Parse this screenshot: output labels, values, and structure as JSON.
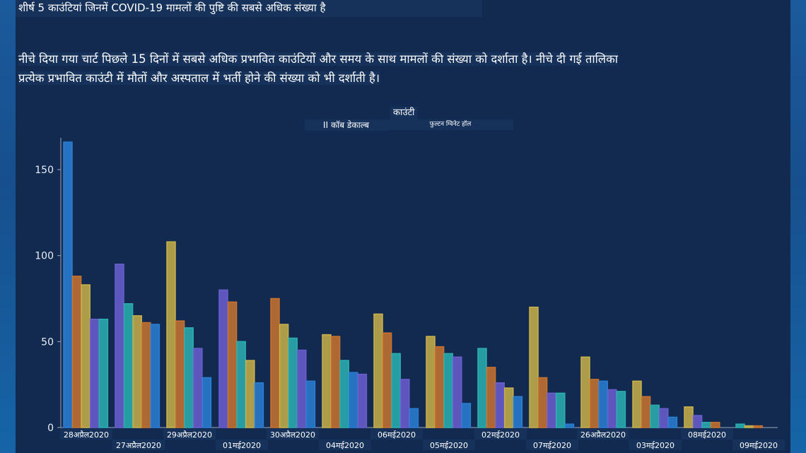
{
  "heading": "शीर्ष 5 काउंटियां जिनमें COVID-19 मामलों की पुष्टि की सबसे अधिक संख्या है",
  "description_line1": "नीचे दिया गया चार्ट पिछले 15 दिनों में सबसे अधिक प्रभावित काउंटियों और समय के साथ मामलों की संख्या को दर्शाता है। नीचे दी गई तालिका",
  "description_line2": "प्रत्येक प्रभावित काउंटी में मौतों और अस्पताल में भर्ती होने की संख्या को भी दर्शाती है।",
  "legend": {
    "title": "काउंटी",
    "left_label": "II कॉब डेकाल्ब",
    "right_label": "फुल्टन ग्विनेट हॉल"
  },
  "colors": {
    "background": "#122a4f",
    "axis": "#9aa7bb",
    "palette": [
      "#2a7fd4",
      "#c9732e",
      "#c9b24a",
      "#6b5fd0",
      "#2bb0b0"
    ]
  },
  "chart_data": {
    "type": "bar",
    "title": "",
    "xlabel": "",
    "ylabel": "",
    "ylim": [
      0,
      170
    ],
    "yticks": [
      0,
      50,
      100,
      150
    ],
    "grid": false,
    "categories": [
      "28अप्रैल2020",
      "27अप्रैल2020",
      "29अप्रैल2020",
      "01मई2020",
      "30अप्रैल2020",
      "04मई2020",
      "06मई2020",
      "05मई2020",
      "02मई2020",
      "07मई2020",
      "26अप्रैल2020",
      "03मई2020",
      "08मई2020",
      "09मई2020"
    ],
    "groups": [
      {
        "values": [
          166,
          88,
          83,
          63,
          63
        ],
        "colors": [
          "#2a7fd4",
          "#c9732e",
          "#c9b24a",
          "#6b5fd0",
          "#2bb0b0"
        ]
      },
      {
        "values": [
          95,
          72,
          65,
          61,
          60
        ],
        "colors": [
          "#6b5fd0",
          "#2bb0b0",
          "#c9b24a",
          "#c9732e",
          "#2a7fd4"
        ]
      },
      {
        "values": [
          108,
          62,
          58,
          46,
          29
        ],
        "colors": [
          "#c9b24a",
          "#c9732e",
          "#2bb0b0",
          "#6b5fd0",
          "#2a7fd4"
        ]
      },
      {
        "values": [
          80,
          73,
          50,
          39,
          26
        ],
        "colors": [
          "#6b5fd0",
          "#c9732e",
          "#2bb0b0",
          "#c9b24a",
          "#2a7fd4"
        ]
      },
      {
        "values": [
          75,
          60,
          52,
          45,
          27
        ],
        "colors": [
          "#c9732e",
          "#c9b24a",
          "#2bb0b0",
          "#6b5fd0",
          "#2a7fd4"
        ]
      },
      {
        "values": [
          54,
          53,
          39,
          32,
          31
        ],
        "colors": [
          "#c9b24a",
          "#c9732e",
          "#2bb0b0",
          "#2a7fd4",
          "#6b5fd0"
        ]
      },
      {
        "values": [
          66,
          55,
          43,
          28,
          11
        ],
        "colors": [
          "#c9b24a",
          "#c9732e",
          "#2bb0b0",
          "#6b5fd0",
          "#2a7fd4"
        ]
      },
      {
        "values": [
          53,
          47,
          43,
          41,
          14
        ],
        "colors": [
          "#c9b24a",
          "#c9732e",
          "#2bb0b0",
          "#6b5fd0",
          "#2a7fd4"
        ]
      },
      {
        "values": [
          46,
          35,
          26,
          23,
          18
        ],
        "colors": [
          "#2bb0b0",
          "#c9732e",
          "#6b5fd0",
          "#c9b24a",
          "#2a7fd4"
        ]
      },
      {
        "values": [
          70,
          29,
          20,
          20,
          2
        ],
        "colors": [
          "#c9b24a",
          "#c9732e",
          "#6b5fd0",
          "#2bb0b0",
          "#2a7fd4"
        ]
      },
      {
        "values": [
          41,
          28,
          27,
          22,
          21
        ],
        "colors": [
          "#c9b24a",
          "#c9732e",
          "#2a7fd4",
          "#6b5fd0",
          "#2bb0b0"
        ]
      },
      {
        "values": [
          27,
          18,
          13,
          11,
          6
        ],
        "colors": [
          "#c9b24a",
          "#c9732e",
          "#2bb0b0",
          "#6b5fd0",
          "#2a7fd4"
        ]
      },
      {
        "values": [
          12,
          7,
          3,
          3
        ],
        "colors": [
          "#c9b24a",
          "#6b5fd0",
          "#2bb0b0",
          "#c9732e"
        ]
      },
      {
        "values": [
          2,
          1,
          1
        ],
        "colors": [
          "#2bb0b0",
          "#c9b24a",
          "#c9732e"
        ]
      }
    ]
  }
}
